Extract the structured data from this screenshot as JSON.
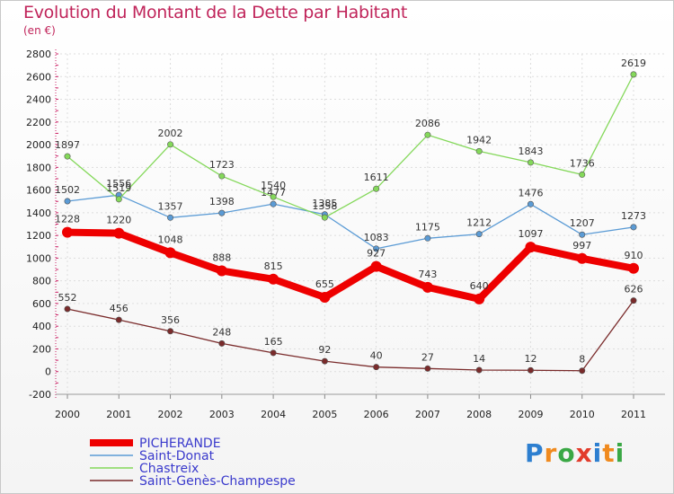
{
  "title": "Evolution du Montant de la Dette par Habitant",
  "subtitle": "(en €)",
  "logo": {
    "letters": [
      "P",
      "r",
      "o",
      "x",
      "i",
      "t",
      "i"
    ],
    "colors": [
      "#2d7fd0",
      "#f08a1e",
      "#3aa845",
      "#e23c2c",
      "#2d7fd0",
      "#f08a1e",
      "#3aa845"
    ]
  },
  "chart_data": {
    "type": "line",
    "x": [
      "2000",
      "2001",
      "2002",
      "2003",
      "2004",
      "2005",
      "2006",
      "2007",
      "2008",
      "2009",
      "2010",
      "2011"
    ],
    "ylim": [
      -200,
      2800
    ],
    "yticks": [
      -200,
      0,
      200,
      400,
      600,
      800,
      1000,
      1200,
      1400,
      1600,
      1800,
      2000,
      2200,
      2400,
      2600,
      2800
    ],
    "grid": true,
    "legend_position": "bottom-left",
    "series": [
      {
        "name": "PICHERANDE",
        "color": "#ee0000",
        "values": [
          1228,
          1220,
          1048,
          888,
          815,
          655,
          927,
          743,
          640,
          1097,
          997,
          910
        ]
      },
      {
        "name": "Saint-Donat",
        "color": "#5b9bd5",
        "values": [
          1502,
          1556,
          1357,
          1398,
          1477,
          1385,
          1083,
          1175,
          1212,
          1476,
          1207,
          1273
        ]
      },
      {
        "name": "Chastreix",
        "color": "#84d85a",
        "values": [
          1897,
          1519,
          2002,
          1723,
          1540,
          1358,
          1611,
          2086,
          1942,
          1843,
          1736,
          2619
        ]
      },
      {
        "name": "Saint-Genès-Champespe",
        "color": "#7a2b2b",
        "values": [
          552,
          456,
          356,
          248,
          165,
          92,
          40,
          27,
          14,
          12,
          8,
          626
        ]
      }
    ]
  }
}
